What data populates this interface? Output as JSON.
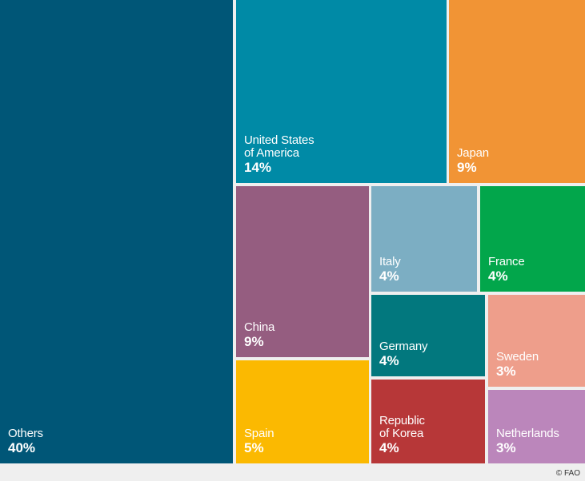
{
  "chart_data": {
    "type": "treemap",
    "title": "",
    "items": [
      {
        "name": "Others",
        "label": "Others",
        "value": 40,
        "value_label": "40%",
        "color": "#005677"
      },
      {
        "name": "United States of America",
        "label": "United States\nof America",
        "value": 14,
        "value_label": "14%",
        "color": "#008aa6"
      },
      {
        "name": "Japan",
        "label": "Japan",
        "value": 9,
        "value_label": "9%",
        "color": "#f19435"
      },
      {
        "name": "China",
        "label": "China",
        "value": 9,
        "value_label": "9%",
        "color": "#955d80"
      },
      {
        "name": "Italy",
        "label": "Italy",
        "value": 4,
        "value_label": "4%",
        "color": "#7caec3"
      },
      {
        "name": "France",
        "label": "France",
        "value": 4,
        "value_label": "4%",
        "color": "#02a64b"
      },
      {
        "name": "Germany",
        "label": "Germany",
        "value": 4,
        "value_label": "4%",
        "color": "#02787e"
      },
      {
        "name": "Sweden",
        "label": "Sweden",
        "value": 3,
        "value_label": "3%",
        "color": "#ee9e8b"
      },
      {
        "name": "Spain",
        "label": "Spain",
        "value": 5,
        "value_label": "5%",
        "color": "#fbb901"
      },
      {
        "name": "Republic of Korea",
        "label": "Republic\nof Korea",
        "value": 4,
        "value_label": "4%",
        "color": "#b73738"
      },
      {
        "name": "Netherlands",
        "label": "Netherlands",
        "value": 3,
        "value_label": "3%",
        "color": "#bb86bb"
      }
    ]
  },
  "credit": "© FAO"
}
